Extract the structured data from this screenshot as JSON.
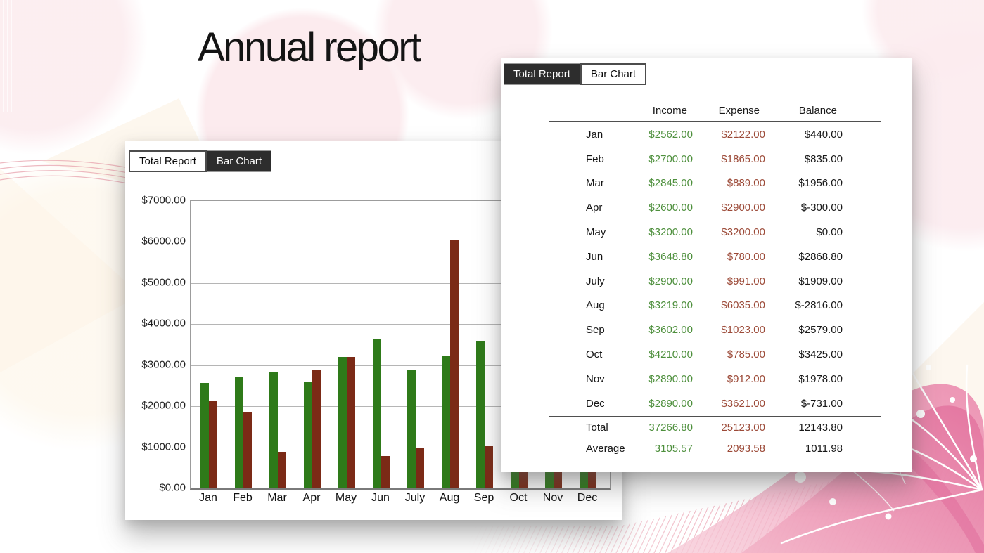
{
  "title": "Annual report",
  "colors": {
    "income_bar": "#2e7a19",
    "expense_bar": "#7b2a16",
    "income_text": "#4d8f3c",
    "expense_text": "#9c4a38",
    "balance_text": "#181818",
    "tab_active_bg": "#2d2d2d",
    "tab_active_text": "#ffffff",
    "flower_pink": "#e87aa4",
    "background_pink": "#fcebee"
  },
  "chart_window": {
    "tabs": [
      {
        "label": "Total Report",
        "active": false
      },
      {
        "label": "Bar Chart",
        "active": true
      }
    ]
  },
  "table_window": {
    "tabs": [
      {
        "label": "Total Report",
        "active": true
      },
      {
        "label": "Bar Chart",
        "active": false
      }
    ],
    "columns": [
      "Income",
      "Expense",
      "Balance"
    ],
    "rows": [
      {
        "month": "Jan",
        "income": "$2562.00",
        "expense": "$2122.00",
        "balance": "$440.00"
      },
      {
        "month": "Feb",
        "income": "$2700.00",
        "expense": "$1865.00",
        "balance": "$835.00"
      },
      {
        "month": "Mar",
        "income": "$2845.00",
        "expense": "$889.00",
        "balance": "$1956.00"
      },
      {
        "month": "Apr",
        "income": "$2600.00",
        "expense": "$2900.00",
        "balance": "$-300.00"
      },
      {
        "month": "May",
        "income": "$3200.00",
        "expense": "$3200.00",
        "balance": "$0.00"
      },
      {
        "month": "Jun",
        "income": "$3648.80",
        "expense": "$780.00",
        "balance": "$2868.80"
      },
      {
        "month": "July",
        "income": "$2900.00",
        "expense": "$991.00",
        "balance": "$1909.00"
      },
      {
        "month": "Aug",
        "income": "$3219.00",
        "expense": "$6035.00",
        "balance": "$-2816.00"
      },
      {
        "month": "Sep",
        "income": "$3602.00",
        "expense": "$1023.00",
        "balance": "$2579.00"
      },
      {
        "month": "Oct",
        "income": "$4210.00",
        "expense": "$785.00",
        "balance": "$3425.00"
      },
      {
        "month": "Nov",
        "income": "$2890.00",
        "expense": "$912.00",
        "balance": "$1978.00"
      },
      {
        "month": "Dec",
        "income": "$2890.00",
        "expense": "$3621.00",
        "balance": "$-731.00"
      }
    ],
    "total": {
      "label": "Total",
      "income": "37266.80",
      "expense": "25123.00",
      "balance": "12143.80"
    },
    "average": {
      "label": "Average",
      "income": "3105.57",
      "expense": "2093.58",
      "balance": "1011.98"
    }
  },
  "chart_data": {
    "type": "bar",
    "categories": [
      "Jan",
      "Feb",
      "Mar",
      "Apr",
      "May",
      "Jun",
      "July",
      "Aug",
      "Sep",
      "Oct",
      "Nov",
      "Dec"
    ],
    "series": [
      {
        "name": "Income",
        "color": "#2e7a19",
        "values": [
          2562,
          2700,
          2845,
          2600,
          3200,
          3648.8,
          2900,
          3219,
          3602,
          4210,
          2890,
          2890
        ]
      },
      {
        "name": "Expense",
        "color": "#7b2a16",
        "values": [
          2122,
          1865,
          889,
          2900,
          3200,
          780,
          991,
          6035,
          1023,
          785,
          912,
          3621
        ]
      }
    ],
    "title": "",
    "xlabel": "",
    "ylabel": "",
    "ylim": [
      0,
      7000
    ],
    "ytick_step": 1000,
    "yticks": [
      "$0.00",
      "$1000.00",
      "$2000.00",
      "$3000.00",
      "$4000.00",
      "$5000.00",
      "$6000.00",
      "$7000.00"
    ],
    "grid": true,
    "legend_position": "none"
  }
}
